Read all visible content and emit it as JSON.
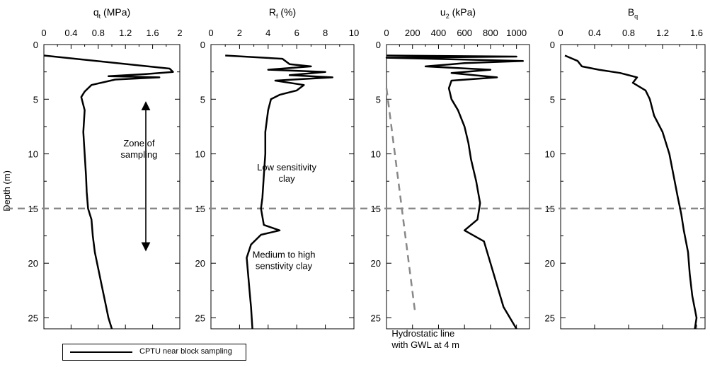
{
  "chart_data": {
    "type": "line",
    "ylabel": "Depth (m)",
    "ylim": [
      0,
      26
    ],
    "yticks": [
      0,
      5,
      10,
      15,
      20,
      25
    ],
    "reference_depth": 15,
    "legend": {
      "label": "CPTU near block sampling",
      "position": "bottom-left"
    },
    "panels": [
      {
        "id": "qt",
        "title": "q",
        "title_sub": "t",
        "title_unit": " (MPa)",
        "xlim": [
          0,
          2
        ],
        "xticks": [
          "0",
          "0.4",
          "0.8",
          "1.2",
          "1.6",
          "2"
        ],
        "tick_values": [
          0,
          0.4,
          0.8,
          1.2,
          1.6,
          2
        ],
        "series": [
          {
            "values": [
              [
                0,
                1.0
              ],
              [
                1.85,
                2.2
              ],
              [
                1.9,
                2.5
              ],
              [
                1.5,
                2.7
              ],
              [
                0.95,
                2.9
              ],
              [
                1.7,
                3.0
              ],
              [
                1.05,
                3.2
              ],
              [
                0.7,
                3.7
              ],
              [
                0.6,
                4.3
              ],
              [
                0.55,
                4.8
              ],
              [
                0.6,
                6
              ],
              [
                0.58,
                8
              ],
              [
                0.6,
                10
              ],
              [
                0.62,
                12
              ],
              [
                0.63,
                13.5
              ],
              [
                0.65,
                15
              ],
              [
                0.7,
                16
              ],
              [
                0.72,
                17.5
              ],
              [
                0.75,
                19
              ],
              [
                0.8,
                20.5
              ],
              [
                0.85,
                22
              ],
              [
                0.9,
                23.5
              ],
              [
                0.95,
                25
              ],
              [
                1.0,
                26
              ]
            ]
          }
        ],
        "annotations": [
          {
            "lines": [
              "Zone of",
              "sampling"
            ],
            "x": 1.4,
            "y": 9.3
          }
        ],
        "arrow": {
          "x": 1.5,
          "y1": 5.6,
          "y2": 18.5
        }
      },
      {
        "id": "rf",
        "title": "R",
        "title_sub": "f",
        "title_unit": " (%)",
        "xlim": [
          0,
          10
        ],
        "xticks": [
          "0",
          "2",
          "4",
          "6",
          "8",
          "10"
        ],
        "tick_values": [
          0,
          2,
          4,
          6,
          8,
          10
        ],
        "series": [
          {
            "values": [
              [
                1.0,
                1.0
              ],
              [
                5.0,
                1.3
              ],
              [
                5.5,
                1.8
              ],
              [
                7.0,
                2.0
              ],
              [
                4.0,
                2.3
              ],
              [
                8.0,
                2.5
              ],
              [
                5.5,
                2.8
              ],
              [
                8.5,
                3.0
              ],
              [
                4.5,
                3.3
              ],
              [
                6.5,
                3.7
              ],
              [
                6.0,
                4.2
              ],
              [
                4.8,
                4.6
              ],
              [
                4.2,
                5.0
              ],
              [
                4.0,
                6
              ],
              [
                3.8,
                8
              ],
              [
                3.8,
                10
              ],
              [
                3.7,
                12
              ],
              [
                3.6,
                14
              ],
              [
                3.5,
                15
              ],
              [
                3.7,
                16.5
              ],
              [
                4.8,
                17.0
              ],
              [
                3.5,
                17.4
              ],
              [
                2.8,
                18.3
              ],
              [
                2.5,
                19.5
              ],
              [
                2.6,
                21
              ],
              [
                2.7,
                22.5
              ],
              [
                2.8,
                24
              ],
              [
                2.9,
                26
              ]
            ]
          }
        ],
        "annotations": [
          {
            "lines": [
              "Low sensitivity",
              "clay"
            ],
            "x": 5.3,
            "y": 11.5
          },
          {
            "lines": [
              "Medium to high",
              "senstivity clay"
            ],
            "x": 5.1,
            "y": 19.5
          }
        ]
      },
      {
        "id": "u2",
        "title": "u",
        "title_sub": "2",
        "title_unit": " (kPa)",
        "xlim": [
          0,
          1100
        ],
        "xticks": [
          "0",
          "200",
          "400",
          "600",
          "800",
          "1000"
        ],
        "tick_values": [
          0,
          200,
          400,
          600,
          800,
          1000
        ],
        "series": [
          {
            "values": [
              [
                0,
                1.0
              ],
              [
                1000,
                1.1
              ],
              [
                0,
                1.2
              ],
              [
                1050,
                1.5
              ],
              [
                600,
                1.7
              ],
              [
                300,
                2.0
              ],
              [
                800,
                2.3
              ],
              [
                500,
                2.6
              ],
              [
                850,
                3.0
              ],
              [
                500,
                3.3
              ],
              [
                480,
                4.0
              ],
              [
                500,
                5.0
              ],
              [
                550,
                6
              ],
              [
                600,
                7.5
              ],
              [
                630,
                9
              ],
              [
                650,
                10.5
              ],
              [
                690,
                12.5
              ],
              [
                720,
                14.5
              ],
              [
                700,
                16
              ],
              [
                600,
                17.0
              ],
              [
                750,
                18
              ],
              [
                800,
                20
              ],
              [
                850,
                22
              ],
              [
                900,
                24
              ],
              [
                1000,
                26
              ]
            ]
          },
          {
            "name": "",
            "values": [
              [
                0,
                4.0
              ],
              [
                220,
                24.5
              ]
            ],
            "style": "dashed"
          }
        ],
        "annotations": [
          {
            "lines": [
              "Hydrostatic line",
              "with GWL at 4 m"
            ],
            "x": 40,
            "y": 26.7,
            "anchor": "start"
          }
        ]
      },
      {
        "id": "bq",
        "title": "B",
        "title_sub": "q",
        "title_unit": "",
        "xlim": [
          0,
          1.7
        ],
        "xticks": [
          "0",
          "0.4",
          "0.8",
          "1.2",
          "1.6"
        ],
        "tick_values": [
          0,
          0.4,
          0.8,
          1.2,
          1.6
        ],
        "series": [
          {
            "values": [
              [
                0.05,
                1.0
              ],
              [
                0.2,
                1.5
              ],
              [
                0.25,
                2.0
              ],
              [
                0.45,
                2.3
              ],
              [
                0.7,
                2.6
              ],
              [
                0.9,
                3.0
              ],
              [
                0.85,
                3.5
              ],
              [
                1.0,
                4.2
              ],
              [
                1.05,
                5.0
              ],
              [
                1.1,
                6.5
              ],
              [
                1.2,
                8
              ],
              [
                1.28,
                10
              ],
              [
                1.33,
                12
              ],
              [
                1.38,
                14
              ],
              [
                1.42,
                15.5
              ],
              [
                1.45,
                17
              ],
              [
                1.5,
                19
              ],
              [
                1.52,
                21
              ],
              [
                1.55,
                23
              ],
              [
                1.6,
                25
              ],
              [
                1.58,
                26
              ]
            ]
          }
        ]
      }
    ]
  }
}
